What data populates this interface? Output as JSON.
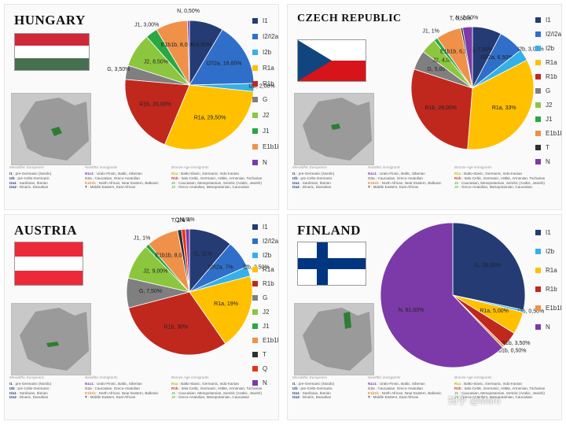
{
  "footer": {
    "head_mesolithic": "Mesolithic Europeans",
    "head_neolithic": "Neolithic immigrants",
    "head_bronze": "Bronze Age immigrants",
    "mesolithic": [
      {
        "code": "I1",
        "text": "pre-Germanic (Nordic)",
        "color": "#2a3f7a"
      },
      {
        "code": "I2b",
        "text": "pre-Celto-Germanic",
        "color": "#2a3f7a"
      },
      {
        "code": "I2a1",
        "text": "Sardinian, Iberian",
        "color": "#2a3f7a"
      },
      {
        "code": "I2a2",
        "text": "Dinaric, Danubian",
        "color": "#2a3f7a"
      }
    ],
    "neolithic": [
      {
        "code": "N1c1",
        "text": "Uralo-Finnic, Baltic, Siberian",
        "color": "#7a3aa8"
      },
      {
        "code": "G2a",
        "text": "Caucasian, Greco-Anatolian",
        "color": "#777777"
      },
      {
        "code": "E1b1b",
        "text": "North African, Near Eastern, Balkanic",
        "color": "#e8873a"
      },
      {
        "code": "T",
        "text": "Middle Eastern, East African",
        "color": "#333333"
      }
    ],
    "bronze": [
      {
        "code": "R1a",
        "text": "Balto-Slavic, Germanic, Indo-Iranian",
        "color": "#c8b400"
      },
      {
        "code": "R1b",
        "text": "Italo-Celtic, Germanic, Hittite, Armenian, Tocharian",
        "color": "#c0392b"
      },
      {
        "code": "J1",
        "text": "Caucasian, Mesopotamian, Semitic (Arabic, Jewish)",
        "color": "#4caf50"
      },
      {
        "code": "J2",
        "text": "Greco-Anatolian, Mesopotamian, Caucasian",
        "color": "#7cb342"
      }
    ]
  },
  "watermark": "知乎 @Maro",
  "chart_data": [
    {
      "type": "pie",
      "title": "HUNGARY",
      "colors": {
        "I1": "#243b74",
        "I2/I2a": "#2f6fc9",
        "I2b": "#35b0e8",
        "R1a": "#ffc000",
        "R1b": "#c0281e",
        "G": "#7f7f7f",
        "J2": "#8cc63e",
        "J1": "#27a844",
        "E1b1b": "#f0914a",
        "T": "#303030",
        "Q": "#e3341b",
        "N": "#7c3aa8"
      },
      "legend": [
        "I1",
        "I2/I2a",
        "I2b",
        "R1a",
        "R1b",
        "G",
        "J2",
        "J1",
        "E1b1b",
        "N"
      ],
      "slices": [
        {
          "name": "I1",
          "value": 8.5,
          "label": "I1, 8,50%"
        },
        {
          "name": "I2/I2a",
          "value": 16,
          "label": "I2/I2a, 16,00%"
        },
        {
          "name": "I2b",
          "value": 2,
          "label": "I2b, 2,00%"
        },
        {
          "name": "R1a",
          "value": 29.5,
          "label": "R1a, 29,50%"
        },
        {
          "name": "R1b",
          "value": 20,
          "label": "R1b, 20,00%"
        },
        {
          "name": "G",
          "value": 3.5,
          "label": "G, 3,50%"
        },
        {
          "name": "J2",
          "value": 8.5,
          "label": "J2, 8,50%"
        },
        {
          "name": "J1",
          "value": 3,
          "label": "J1, 3,00%"
        },
        {
          "name": "E1b1b",
          "value": 8,
          "label": "E1b1b, 8,00%"
        },
        {
          "name": "N",
          "value": 0.5,
          "label": "N, 0,50%"
        }
      ]
    },
    {
      "type": "pie",
      "title": "CZECH REPUBLIC",
      "colors": {
        "I1": "#243b74",
        "I2/I2a": "#2f6fc9",
        "I2b": "#35b0e8",
        "R1a": "#ffc000",
        "R1b": "#c0281e",
        "G": "#7f7f7f",
        "J2": "#8cc63e",
        "J1": "#27a844",
        "E1b1b": "#f0914a",
        "T": "#303030",
        "N": "#7c3aa8"
      },
      "legend": [
        "I1",
        "I2/I2a",
        "I2b",
        "R1a",
        "R1b",
        "G",
        "J2",
        "J1",
        "E1b1b",
        "T",
        "N"
      ],
      "slices": [
        {
          "name": "I1",
          "value": 7.5,
          "label": "I1, 7,50%"
        },
        {
          "name": "I2/I2a",
          "value": 6.5,
          "label": "I2/I2a, 6,50%"
        },
        {
          "name": "I2b",
          "value": 3,
          "label": "I2b, 3,00%"
        },
        {
          "name": "R1a",
          "value": 33,
          "label": "R1a, 33%"
        },
        {
          "name": "R1b",
          "value": 28,
          "label": "R1b, 28,00%"
        },
        {
          "name": "G",
          "value": 5,
          "label": "G, 5,00%"
        },
        {
          "name": "J2",
          "value": 4,
          "label": "J2, 4,00%"
        },
        {
          "name": "J1",
          "value": 1,
          "label": "J1, 1%"
        },
        {
          "name": "E1b1b",
          "value": 6.5,
          "label": "E1b1b, 6,50%"
        },
        {
          "name": "T",
          "value": 0.5,
          "label": "T, 0,50%"
        },
        {
          "name": "N",
          "value": 2.5,
          "label": "N, 2,50%"
        }
      ]
    },
    {
      "type": "pie",
      "title": "AUSTRIA",
      "colors": {
        "I1": "#243b74",
        "I2/I2a": "#2f6fc9",
        "I2b": "#35b0e8",
        "R1a": "#ffc000",
        "R1b": "#c0281e",
        "G": "#7f7f7f",
        "J2": "#8cc63e",
        "J1": "#27a844",
        "E1b1b": "#f0914a",
        "T": "#303030",
        "Q": "#e3341b",
        "N": "#7c3aa8"
      },
      "legend": [
        "I1",
        "I2/I2a",
        "I2b",
        "R1a",
        "R1b",
        "G",
        "J2",
        "J1",
        "E1b1b",
        "T",
        "Q",
        "N"
      ],
      "slices": [
        {
          "name": "I1",
          "value": 11,
          "label": "I1, 11%"
        },
        {
          "name": "I2/I2a",
          "value": 7,
          "label": "I2/I2a, 7%"
        },
        {
          "name": "I2b",
          "value": 2.5,
          "label": "I2b, 2,50%"
        },
        {
          "name": "R1a",
          "value": 19,
          "label": "R1a, 19%"
        },
        {
          "name": "R1b",
          "value": 30,
          "label": "R1b, 30%"
        },
        {
          "name": "G",
          "value": 7.5,
          "label": "G, 7,50%"
        },
        {
          "name": "J2",
          "value": 9,
          "label": "J2, 9,00%"
        },
        {
          "name": "J1",
          "value": 1,
          "label": "J1, 1%"
        },
        {
          "name": "E1b1b",
          "value": 8,
          "label": "E1b1b, 8,00%"
        },
        {
          "name": "T",
          "value": 1,
          "label": "T, 1%"
        },
        {
          "name": "Q",
          "value": 1,
          "label": "Q, 1%"
        },
        {
          "name": "N",
          "value": 1,
          "label": "N, 1%"
        }
      ]
    },
    {
      "type": "pie",
      "title": "FINLAND",
      "colors": {
        "I1": "#243b74",
        "I2b": "#35b0e8",
        "R1a": "#ffc000",
        "R1b": "#c0281e",
        "E1b1b": "#f0914a",
        "N": "#7c3aa8"
      },
      "legend": [
        "I1",
        "I2b",
        "R1a",
        "R1b",
        "E1b1b",
        "N"
      ],
      "slices": [
        {
          "name": "I1",
          "value": 28,
          "label": "I1, 28,00%"
        },
        {
          "name": "I2b",
          "value": 0.5,
          "label": "I2b, 0,50%"
        },
        {
          "name": "R1a",
          "value": 5,
          "label": "R1a, 5,00%"
        },
        {
          "name": "R1b",
          "value": 3.5,
          "label": "R1b, 3,50%"
        },
        {
          "name": "E1b1b",
          "value": 0.5,
          "label": "E1b1b, 0,50%"
        },
        {
          "name": "N",
          "value": 61.5,
          "label": "N, 61,50%"
        }
      ]
    }
  ]
}
